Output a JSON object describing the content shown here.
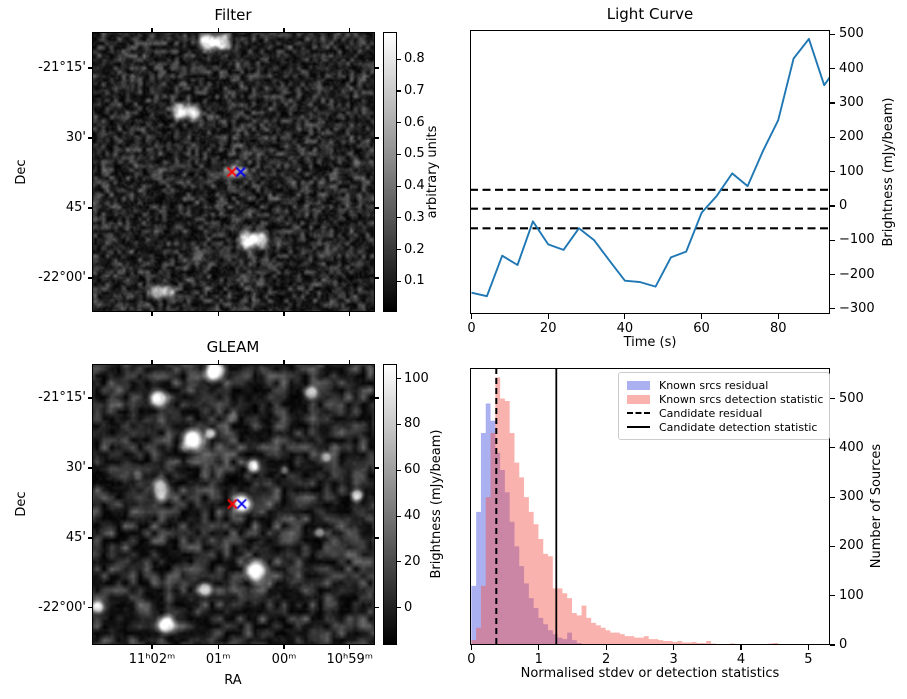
{
  "figure": {
    "background": "#ffffff",
    "marker_red": "#ff0000",
    "marker_blue": "#0000ee"
  },
  "chart_data": [
    {
      "type": "heatmap",
      "panel": "top-left",
      "title": "Filter",
      "xlabel": "",
      "ylabel": "Dec",
      "colorbar_label": "arbitrary units",
      "colorbar_ticks": [
        "0.8",
        "0.7",
        "0.6",
        "0.5",
        "0.4",
        "0.3",
        "0.2",
        "0.1"
      ],
      "colorbar_tick_pos": [
        0.0975,
        0.2107,
        0.3239,
        0.4371,
        0.5504,
        0.6636,
        0.7768,
        0.89
      ],
      "ytick_labels": [
        "-21°15'",
        "30'",
        "45'",
        "-22°00'"
      ],
      "ytick_pos": [
        0.1286,
        0.3786,
        0.6286,
        0.8786
      ],
      "xtick_labels": [],
      "xtick_pos": [
        0.212,
        0.446,
        0.6785,
        0.9107
      ],
      "markers": [
        {
          "shape": "x",
          "color": "#ff0000",
          "x": 0.4947,
          "y": 0.5
        },
        {
          "shape": "x",
          "color": "#0000ee",
          "x": 0.5254,
          "y": 0.5
        }
      ],
      "sources": [
        [
          0.41,
          0.032,
          6.5,
          0.95
        ],
        [
          0.459,
          0.032,
          6,
          0.85
        ],
        [
          0.311,
          0.282,
          6,
          0.85
        ],
        [
          0.357,
          0.286,
          5.5,
          0.75
        ],
        [
          0.417,
          0.304,
          3,
          0.3
        ],
        [
          0.509,
          0.5,
          9,
          0.5,
          0.6
        ],
        [
          0.551,
          0.746,
          6.5,
          0.9
        ],
        [
          0.597,
          0.743,
          6,
          0.8
        ],
        [
          0.375,
          0.8,
          4.5,
          0.35
        ],
        [
          0.23,
          0.932,
          5.5,
          0.65
        ],
        [
          0.269,
          0.929,
          5,
          0.55
        ],
        [
          0.94,
          0.47,
          3.5,
          0.25
        ]
      ],
      "noise": {
        "cell": 4,
        "amp": 95,
        "gamma": 2.1,
        "seed": 1234567,
        "fine_cell": 2,
        "fine_amp": 80,
        "fine_alpha": 0.4
      }
    },
    {
      "type": "line",
      "panel": "top-right",
      "title": "Light Curve",
      "xlabel": "Time (s)",
      "ylabel": "Brightness (mJy/beam)",
      "line_color": "#1f77b4",
      "x": [
        0,
        4,
        8,
        12,
        16,
        20,
        24,
        28,
        32,
        36,
        40,
        44,
        48,
        52,
        56,
        60,
        64,
        68,
        72,
        76,
        80,
        84,
        88,
        92,
        96
      ],
      "y": [
        -253,
        -263,
        -145,
        -172,
        -45,
        -112,
        -128,
        -65,
        -100,
        -160,
        -218,
        -222,
        -235,
        -150,
        -133,
        -20,
        30,
        95,
        58,
        160,
        250,
        430,
        487,
        352,
        415
      ],
      "hlines_dashed": [
        47,
        -8,
        -65
      ],
      "xlim": [
        -0.4,
        93.5
      ],
      "ylim": [
        -315,
        513
      ],
      "xticks": [
        0,
        20,
        40,
        60,
        80
      ],
      "yticks": [
        -300,
        -200,
        -100,
        0,
        100,
        200,
        300,
        400,
        500
      ],
      "yaxis_side": "right",
      "grid": false
    },
    {
      "type": "heatmap",
      "panel": "bottom-left",
      "title": "GLEAM",
      "xlabel": "RA",
      "ylabel": "Dec",
      "colorbar_label": "Brightness (mJy/beam)",
      "colorbar_ticks": [
        "100",
        "80",
        "60",
        "40",
        "20",
        "0"
      ],
      "colorbar_tick_pos": [
        0.0523,
        0.2153,
        0.3783,
        0.5413,
        0.7043,
        0.8673
      ],
      "ytick_labels": [
        "-21°15'",
        "30'",
        "45'",
        "-22°00'"
      ],
      "ytick_pos": [
        0.121,
        0.37,
        0.619,
        0.868
      ],
      "xtick_labels": [
        "11ʰ02ᵐ",
        "01ᵐ",
        "00ᵐ",
        "10ʰ59ᵐ"
      ],
      "xtick_pos": [
        0.212,
        0.446,
        0.6785,
        0.9107
      ],
      "markers": [
        {
          "shape": "x",
          "color": "#ff0000",
          "x": 0.4958,
          "y": 0.4982
        },
        {
          "shape": "x",
          "color": "#0000ee",
          "x": 0.529,
          "y": 0.498
        }
      ],
      "sources": [
        [
          0.435,
          0.021,
          7.5,
          1.0
        ],
        [
          0.233,
          0.121,
          6.5,
          0.95
        ],
        [
          0.777,
          0.1,
          5,
          0.7
        ],
        [
          0.353,
          0.27,
          7.5,
          1.0
        ],
        [
          0.417,
          0.246,
          4,
          0.65
        ],
        [
          0.498,
          0.189,
          4,
          0.3
        ],
        [
          0.569,
          0.363,
          4.5,
          0.75
        ],
        [
          0.24,
          0.448,
          5.5,
          0.75,
          1.5
        ],
        [
          0.83,
          0.331,
          3.5,
          0.45
        ],
        [
          0.94,
          0.466,
          4.5,
          0.75
        ],
        [
          0.53,
          0.498,
          6.5,
          1.0
        ],
        [
          0.806,
          0.601,
          3.5,
          0.55
        ],
        [
          0.58,
          0.74,
          7.5,
          1.0
        ],
        [
          0.399,
          0.804,
          5,
          0.8
        ],
        [
          0.018,
          0.868,
          4.5,
          0.75
        ],
        [
          0.261,
          0.932,
          6.5,
          0.95
        ],
        [
          0.682,
          0.377,
          3,
          0.3
        ],
        [
          0.159,
          0.395,
          3.5,
          0.3
        ]
      ],
      "noise": {
        "cell": 7,
        "amp": 105,
        "gamma": 2.0,
        "seed": 424242,
        "fine_cell": 3,
        "fine_amp": 55,
        "fine_alpha": 0.35
      }
    },
    {
      "type": "bar",
      "panel": "bottom-right",
      "title": "",
      "xlabel": "Normalised stdev or detection statistics",
      "ylabel": "Number of Sources",
      "bin_start": 0,
      "bin_width": 0.0711,
      "series": [
        {
          "name": "Known srcs residual",
          "color": "rgba(85,97,225,0.5)",
          "values": [
            120,
            270,
            430,
            490,
            455,
            390,
            355,
            310,
            250,
            200,
            160,
            125,
            95,
            75,
            55,
            42,
            30,
            22,
            15,
            12,
            25,
            10,
            4
          ]
        },
        {
          "name": "Known srcs detection statistic",
          "color": "rgba(244,84,75,0.45)",
          "values": [
            10,
            35,
            120,
            300,
            430,
            543,
            500,
            495,
            430,
            370,
            340,
            300,
            270,
            245,
            215,
            185,
            180,
            115,
            115,
            105,
            95,
            65,
            60,
            80,
            55,
            45,
            40,
            35,
            30,
            25,
            25,
            22,
            18,
            18,
            15,
            15,
            18,
            12,
            12,
            10,
            8,
            8,
            6,
            8,
            5,
            5,
            6,
            4,
            4,
            8,
            3,
            2,
            2,
            2,
            3,
            2,
            1,
            2,
            1,
            2,
            1,
            1,
            3,
            4,
            1,
            1,
            0,
            1,
            0,
            1,
            2,
            1,
            0,
            0,
            1
          ]
        }
      ],
      "vline_dashed": {
        "label": "Candidate residual",
        "x": 0.37
      },
      "vline_solid": {
        "label": "Candidate detection statistic",
        "x": 1.26
      },
      "xlim": [
        -0.02,
        5.32
      ],
      "ylim": [
        0,
        562
      ],
      "xticks": [
        0,
        1,
        2,
        3,
        4,
        5
      ],
      "yticks": [
        0,
        100,
        200,
        300,
        400,
        500
      ],
      "yaxis_side": "right",
      "legend_position": "upper-right"
    }
  ]
}
